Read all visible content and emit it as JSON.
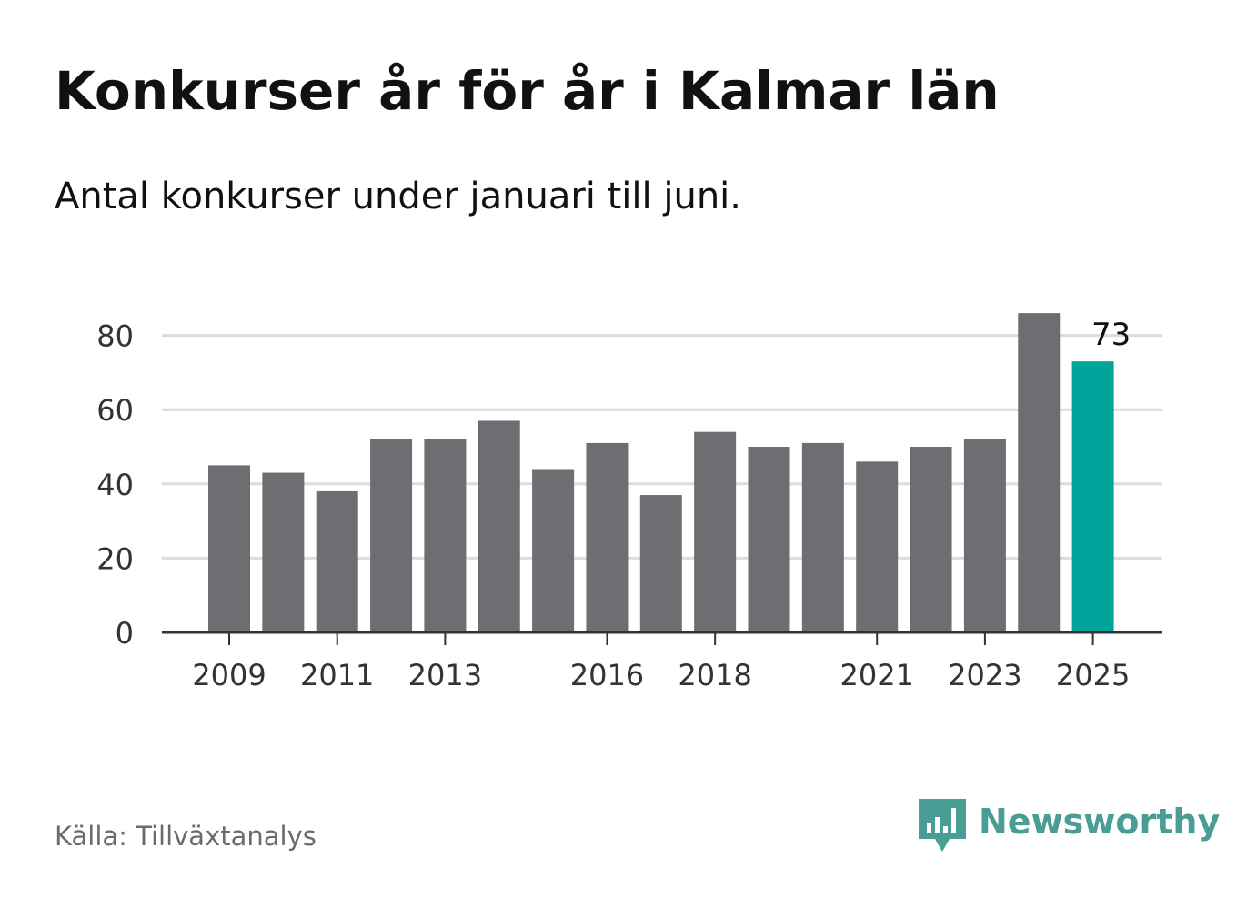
{
  "header": {
    "title": "Konkurser år för år i Kalmar län",
    "subtitle": "Antal konkurser under januari till juni."
  },
  "footer": {
    "source": "Källa: Tillväxtanalys",
    "brand": "Newsworthy",
    "brand_icon": "bar-chart-speech-bubble-icon"
  },
  "colors": {
    "bar": "#6e6d72",
    "highlight": "#00a49a",
    "grid": "#dcdcdc",
    "axis": "#333333",
    "brand": "#4a9d95"
  },
  "chart_data": {
    "type": "bar",
    "categories": [
      "2009",
      "2010",
      "2011",
      "2012",
      "2013",
      "2014",
      "2015",
      "2016",
      "2017",
      "2018",
      "2019",
      "2020",
      "2021",
      "2022",
      "2023",
      "2024",
      "2025"
    ],
    "values": [
      45,
      43,
      38,
      52,
      52,
      57,
      44,
      51,
      37,
      54,
      50,
      51,
      46,
      50,
      52,
      86,
      73
    ],
    "x_tick_labels": [
      "2009",
      "2011",
      "2013",
      "2016",
      "2018",
      "2021",
      "2023",
      "2025"
    ],
    "y_ticks": [
      0,
      20,
      40,
      60,
      80
    ],
    "ylim": [
      0,
      90
    ],
    "grid": true,
    "highlight": {
      "category": "2025",
      "label": "73"
    },
    "title": "Konkurser år för år i Kalmar län",
    "subtitle": "Antal konkurser under januari till juni.",
    "xlabel": "",
    "ylabel": ""
  }
}
